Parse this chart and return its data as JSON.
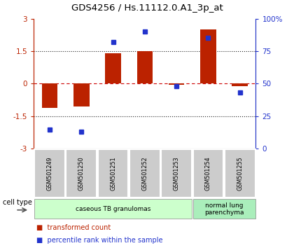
{
  "title": "GDS4256 / Hs.11112.0.A1_3p_at",
  "samples": [
    "GSM501249",
    "GSM501250",
    "GSM501251",
    "GSM501252",
    "GSM501253",
    "GSM501254",
    "GSM501255"
  ],
  "bar_values": [
    -1.1,
    -1.05,
    1.4,
    1.5,
    -0.05,
    2.5,
    -0.1
  ],
  "dot_values": [
    15,
    13,
    82,
    90,
    48,
    85,
    43
  ],
  "ylim_left": [
    -3,
    3
  ],
  "ylim_right": [
    0,
    100
  ],
  "yticks_left": [
    -3,
    -1.5,
    0,
    1.5,
    3
  ],
  "ytick_labels_left": [
    "-3",
    "-1.5",
    "0",
    "1.5",
    "3"
  ],
  "yticks_right": [
    0,
    25,
    50,
    75,
    100
  ],
  "ytick_labels_right": [
    "0",
    "25",
    "50",
    "75",
    "100%"
  ],
  "bar_color": "#bb2200",
  "dot_color": "#2233cc",
  "hline_color_zero": "#cc0000",
  "hline_color_other": "#222222",
  "cell_type_groups": [
    {
      "label": "caseous TB granulomas",
      "start": 0,
      "end": 5,
      "color": "#ccffcc"
    },
    {
      "label": "normal lung\nparenchyma",
      "start": 5,
      "end": 7,
      "color": "#aaeebb"
    }
  ],
  "legend_bar_label": "transformed count",
  "legend_dot_label": "percentile rank within the sample",
  "cell_type_label": "cell type",
  "bar_width": 0.5,
  "background_color": "#ffffff",
  "plot_bg_color": "#ffffff",
  "tick_box_color": "#cccccc",
  "spine_color": "#888888"
}
